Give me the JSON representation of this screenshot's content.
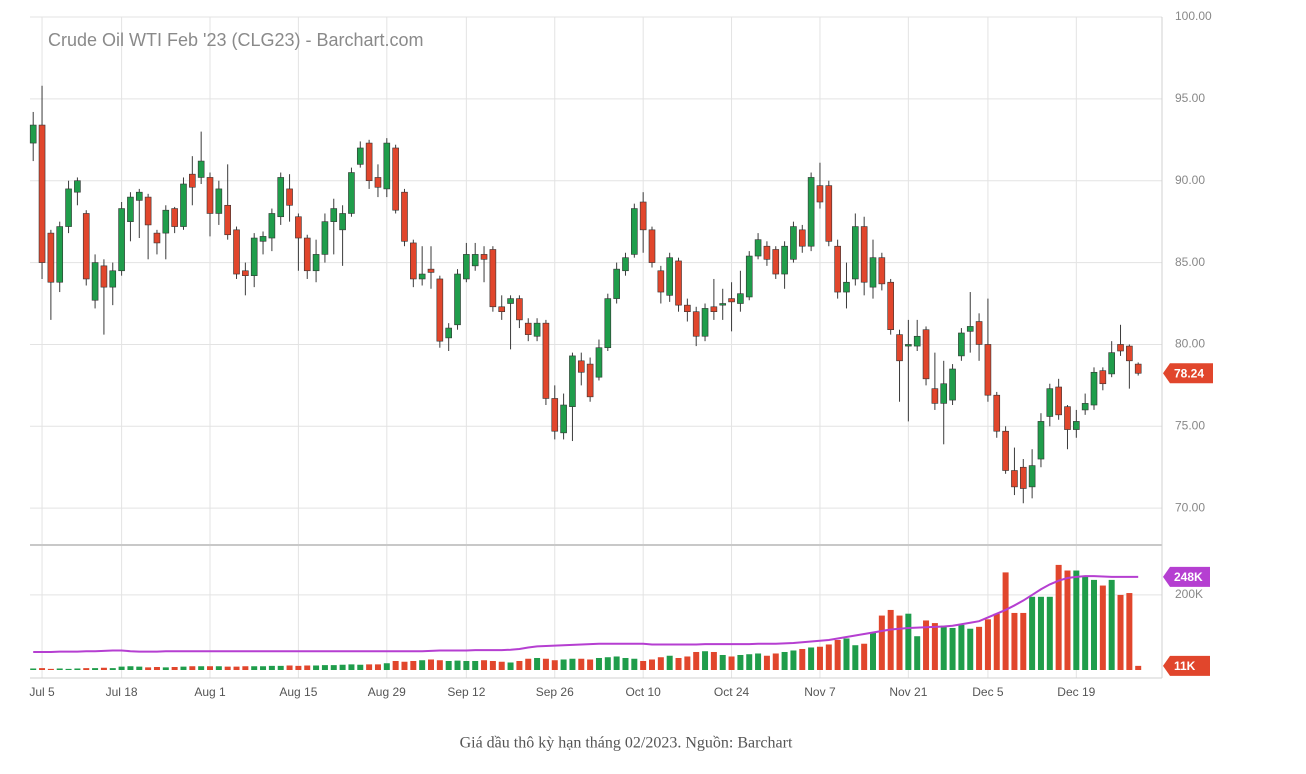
{
  "chart_data": [
    {
      "type": "candlestick",
      "title": "Crude Oil WTI Feb '23 (CLG23) - Barchart.com",
      "up_color": "#1f9d4b",
      "down_color": "#e1462c",
      "grid": true,
      "ylim": [
        67.75,
        100
      ],
      "yticks": [
        {
          "value": 70,
          "label": "70.00"
        },
        {
          "value": 75,
          "label": "75.00"
        },
        {
          "value": 80,
          "label": "80.00"
        },
        {
          "value": 85,
          "label": "85.00"
        },
        {
          "value": 90,
          "label": "90.00"
        },
        {
          "value": 95,
          "label": "95.00"
        },
        {
          "value": 100,
          "label": "100.00"
        }
      ],
      "open": [
        92.3,
        93.4,
        86.8,
        83.8,
        87.2,
        89.3,
        88.0,
        82.7,
        84.8,
        83.5,
        84.5,
        87.5,
        88.8,
        89.0,
        86.8,
        86.8,
        88.3,
        87.2,
        90.4,
        90.2,
        90.2,
        88.0,
        88.5,
        87.0,
        84.5,
        84.2,
        86.3,
        86.5,
        87.8,
        89.5,
        87.8,
        86.5,
        84.5,
        85.5,
        87.5,
        87.0,
        88.0,
        91.0,
        92.3,
        90.2,
        89.5,
        92.0,
        89.3,
        86.2,
        84.0,
        84.6,
        84.0,
        80.4,
        81.2,
        84.0,
        84.8,
        85.5,
        85.8,
        82.3,
        82.5,
        82.8,
        81.3,
        80.5,
        81.3,
        76.7,
        74.6,
        76.2,
        79.0,
        78.8,
        78.0,
        79.8,
        82.8,
        84.5,
        85.5,
        88.7,
        87.0,
        84.5,
        83.0,
        85.1,
        82.4,
        82.0,
        80.5,
        82.3,
        82.4,
        82.8,
        82.5,
        82.9,
        85.4,
        86.0,
        85.8,
        84.3,
        85.2,
        87.0,
        86.0,
        89.7,
        89.7,
        86.0,
        83.2,
        84.0,
        87.2,
        83.5,
        85.3,
        83.8,
        80.6,
        79.9,
        79.9,
        80.9,
        77.3,
        76.4,
        76.6,
        79.3,
        80.8,
        81.4,
        80.0,
        76.9,
        74.7,
        72.3,
        72.5,
        71.3,
        73.0,
        75.6,
        77.4,
        76.2,
        74.8,
        76.0,
        76.3,
        78.4,
        78.2,
        80.0,
        79.9,
        78.8
      ],
      "high": [
        94.2,
        95.8,
        87.0,
        87.5,
        90.0,
        90.2,
        88.2,
        85.5,
        85.2,
        85.0,
        88.7,
        89.3,
        89.5,
        89.2,
        87.0,
        88.5,
        88.4,
        90.2,
        91.5,
        93.0,
        90.5,
        90.0,
        91.0,
        87.2,
        85.0,
        86.8,
        86.9,
        88.3,
        90.5,
        90.4,
        88.0,
        86.7,
        86.4,
        88.0,
        88.9,
        88.5,
        90.8,
        92.4,
        92.5,
        91.0,
        92.6,
        92.2,
        89.5,
        86.4,
        86.0,
        86.0,
        84.2,
        81.3,
        84.6,
        86.2,
        86.2,
        86.0,
        86.0,
        83.0,
        83.0,
        83.0,
        81.6,
        81.6,
        81.5,
        77.5,
        77.0,
        79.5,
        79.5,
        79.2,
        80.3,
        83.1,
        85.0,
        85.6,
        88.6,
        89.3,
        87.2,
        84.8,
        85.6,
        85.3,
        82.8,
        82.3,
        82.5,
        84.0,
        83.4,
        83.8,
        84.5,
        85.7,
        86.8,
        86.3,
        86.0,
        86.3,
        87.5,
        87.3,
        90.5,
        91.1,
        90.0,
        86.4,
        85.0,
        88.0,
        87.8,
        86.4,
        85.6,
        84.0,
        80.9,
        81.5,
        81.5,
        81.1,
        79.5,
        79.0,
        78.8,
        81.0,
        83.2,
        81.9,
        82.8,
        77.1,
        75.0,
        73.7,
        73.0,
        73.6,
        75.8,
        77.6,
        77.9,
        76.3,
        76.0,
        77.0,
        78.6,
        78.6,
        80.2,
        81.2,
        80.0,
        78.9
      ],
      "low": [
        91.2,
        84.0,
        81.5,
        83.2,
        86.8,
        88.5,
        83.6,
        82.2,
        80.6,
        82.4,
        84.2,
        86.3,
        86.5,
        85.2,
        85.5,
        85.2,
        86.8,
        87.0,
        88.5,
        89.8,
        86.6,
        87.3,
        86.4,
        84.0,
        83.0,
        83.5,
        85.5,
        85.7,
        87.3,
        87.5,
        84.5,
        84.0,
        83.8,
        85.0,
        85.5,
        84.8,
        87.8,
        90.8,
        89.5,
        89.0,
        89.0,
        88.0,
        86.0,
        83.5,
        83.6,
        83.4,
        79.8,
        79.6,
        80.9,
        83.8,
        84.5,
        83.8,
        82.0,
        81.5,
        79.7,
        81.0,
        80.2,
        80.2,
        76.3,
        74.2,
        74.2,
        74.1,
        77.5,
        76.5,
        77.8,
        79.6,
        82.5,
        84.2,
        85.3,
        85.6,
        84.7,
        82.5,
        82.6,
        82.0,
        81.4,
        79.9,
        80.2,
        81.5,
        81.5,
        80.8,
        82.0,
        82.7,
        85.2,
        84.8,
        84.0,
        83.4,
        85.0,
        85.6,
        85.7,
        88.3,
        86.0,
        82.8,
        82.2,
        83.6,
        83.0,
        82.8,
        83.3,
        80.6,
        76.5,
        75.3,
        79.6,
        77.5,
        76.0,
        73.9,
        76.3,
        79.0,
        79.5,
        79.0,
        76.5,
        74.3,
        72.1,
        70.8,
        70.3,
        70.6,
        72.5,
        75.0,
        75.4,
        73.6,
        74.3,
        75.7,
        76.0,
        77.2,
        78.0,
        79.3,
        77.3,
        78.1
      ],
      "close": [
        93.4,
        85.0,
        83.8,
        87.2,
        89.5,
        90.0,
        84.0,
        85.0,
        83.5,
        84.5,
        88.3,
        89.0,
        89.3,
        87.3,
        86.2,
        88.2,
        87.2,
        89.8,
        89.6,
        91.2,
        88.0,
        89.5,
        86.7,
        84.3,
        84.2,
        86.5,
        86.6,
        88.0,
        90.2,
        88.5,
        86.5,
        84.5,
        85.5,
        87.5,
        88.3,
        88.0,
        90.5,
        92.0,
        90.0,
        89.6,
        92.3,
        88.2,
        86.3,
        84.0,
        84.3,
        84.4,
        80.2,
        81.0,
        84.3,
        85.5,
        85.5,
        85.2,
        82.3,
        82.0,
        82.8,
        81.5,
        80.6,
        81.3,
        76.7,
        74.7,
        76.3,
        79.3,
        78.3,
        76.8,
        79.8,
        82.8,
        84.6,
        85.3,
        88.3,
        87.0,
        85.0,
        83.2,
        85.3,
        82.4,
        82.0,
        80.5,
        82.2,
        82.0,
        82.5,
        82.6,
        83.1,
        85.4,
        86.4,
        85.2,
        84.3,
        86.0,
        87.2,
        86.0,
        90.2,
        88.7,
        86.3,
        83.2,
        83.8,
        87.2,
        83.8,
        85.3,
        83.7,
        80.9,
        79.0,
        80.0,
        80.5,
        77.9,
        76.4,
        77.6,
        78.5,
        80.7,
        81.1,
        80.0,
        76.9,
        74.7,
        72.3,
        71.3,
        71.2,
        72.6,
        75.3,
        77.3,
        75.7,
        74.8,
        75.3,
        76.4,
        78.3,
        77.6,
        79.5,
        79.6,
        79.0,
        78.24
      ]
    },
    {
      "type": "bar",
      "categories": [
        null,
        "Jul 5",
        null,
        null,
        null,
        null,
        null,
        null,
        null,
        null,
        "Jul 18",
        null,
        null,
        null,
        null,
        null,
        null,
        null,
        null,
        null,
        "Aug 1",
        null,
        null,
        null,
        null,
        null,
        null,
        null,
        null,
        null,
        "Aug 15",
        null,
        null,
        null,
        null,
        null,
        null,
        null,
        null,
        null,
        "Aug 29",
        null,
        null,
        null,
        null,
        null,
        null,
        null,
        null,
        "Sep 12",
        null,
        null,
        null,
        null,
        null,
        null,
        null,
        null,
        null,
        "Sep 26",
        null,
        null,
        null,
        null,
        null,
        null,
        null,
        null,
        null,
        "Oct 10",
        null,
        null,
        null,
        null,
        null,
        null,
        null,
        null,
        null,
        "Oct 24",
        null,
        null,
        null,
        null,
        null,
        null,
        null,
        null,
        null,
        "Nov 7",
        null,
        null,
        null,
        null,
        null,
        null,
        null,
        null,
        null,
        "Nov 21",
        null,
        null,
        null,
        null,
        null,
        null,
        null,
        null,
        "Dec 5",
        null,
        null,
        null,
        null,
        null,
        null,
        null,
        null,
        null,
        "Dec 19",
        null,
        null,
        null,
        null,
        null,
        null,
        null
      ],
      "ylim": [
        0,
        333
      ],
      "yticks": [
        {
          "value": 200,
          "label": "200K"
        }
      ],
      "grid": true,
      "values": [
        4,
        5,
        3,
        4,
        3,
        4,
        5,
        5,
        6,
        5,
        9,
        10,
        9,
        7,
        8,
        7,
        8,
        9,
        10,
        10,
        10,
        10,
        9,
        9,
        10,
        10,
        10,
        11,
        11,
        12,
        11,
        12,
        12,
        13,
        13,
        14,
        15,
        14,
        15,
        15,
        18,
        24,
        22,
        24,
        26,
        28,
        26,
        24,
        25,
        24,
        24,
        26,
        24,
        22,
        20,
        24,
        30,
        32,
        30,
        26,
        28,
        30,
        30,
        28,
        32,
        34,
        36,
        32,
        30,
        24,
        28,
        34,
        38,
        32,
        36,
        48,
        50,
        48,
        40,
        36,
        40,
        42,
        44,
        38,
        44,
        48,
        52,
        56,
        60,
        62,
        68,
        80,
        84,
        66,
        70,
        100,
        145,
        160,
        145,
        150,
        90,
        132,
        125,
        118,
        112,
        120,
        110,
        115,
        135,
        150,
        260,
        152,
        152,
        195,
        195,
        195,
        280,
        265,
        265,
        250,
        240,
        225,
        240,
        200,
        205,
        11
      ],
      "value_labels": [
        null,
        null,
        null,
        null,
        null,
        null,
        null,
        null,
        null,
        null,
        null,
        null,
        null,
        null,
        null,
        null,
        null,
        null,
        null,
        null,
        null,
        null,
        null,
        null,
        null,
        null,
        null,
        null,
        null,
        null,
        null,
        null,
        null,
        null,
        null,
        null,
        null,
        null,
        null,
        null,
        null,
        null,
        null,
        null,
        null,
        null,
        null,
        null,
        null,
        null,
        null,
        null,
        null,
        null,
        null,
        null,
        null,
        null,
        null,
        null,
        null,
        null,
        null,
        null,
        null,
        null,
        null,
        null,
        null,
        null,
        null,
        null,
        null,
        null,
        null,
        null,
        null,
        null,
        null,
        null,
        null,
        null,
        null,
        null,
        null,
        null,
        null,
        null,
        null,
        null,
        null,
        null,
        null,
        null,
        null,
        null,
        null,
        null,
        null,
        null,
        null,
        null,
        null,
        null,
        null,
        null,
        null,
        null,
        null,
        null,
        null,
        null,
        null,
        null,
        null,
        null,
        null,
        null,
        null,
        null,
        null,
        null,
        null,
        null,
        null,
        "11K"
      ],
      "ma": {
        "color": "#b53fd1",
        "values": [
          48,
          48,
          48,
          49,
          49,
          49,
          50,
          50,
          51,
          52,
          52,
          50,
          49,
          49,
          49,
          50,
          50,
          50,
          50,
          50,
          50,
          50,
          50,
          50,
          50,
          50,
          50,
          50,
          50,
          50,
          50,
          50,
          50,
          50,
          50,
          50,
          50,
          50,
          50,
          50,
          50,
          50,
          50,
          50,
          50,
          51,
          52,
          52,
          52,
          52,
          53,
          53,
          53,
          53,
          54,
          56,
          60,
          63,
          64,
          65,
          66,
          67,
          68,
          69,
          70,
          70,
          70,
          70,
          70,
          70,
          68,
          68,
          68,
          68,
          68,
          68,
          69,
          69,
          69,
          69,
          69,
          69,
          70,
          70,
          70,
          71,
          72,
          74,
          76,
          78,
          80,
          84,
          88,
          92,
          96,
          100,
          104,
          108,
          110,
          112,
          113,
          114,
          115,
          116,
          118,
          122,
          126,
          130,
          140,
          150,
          160,
          172,
          185,
          200,
          215,
          228,
          238,
          245,
          248,
          250,
          250,
          249,
          248,
          248,
          248,
          248
        ],
        "value_labels": [
          null,
          null,
          null,
          null,
          null,
          null,
          null,
          null,
          null,
          null,
          null,
          null,
          null,
          null,
          null,
          null,
          null,
          null,
          null,
          null,
          null,
          null,
          null,
          null,
          null,
          null,
          null,
          null,
          null,
          null,
          null,
          null,
          null,
          null,
          null,
          null,
          null,
          null,
          null,
          null,
          null,
          null,
          null,
          null,
          null,
          null,
          null,
          null,
          null,
          null,
          null,
          null,
          null,
          null,
          null,
          null,
          null,
          null,
          null,
          null,
          null,
          null,
          null,
          null,
          null,
          null,
          null,
          null,
          null,
          null,
          null,
          null,
          null,
          null,
          null,
          null,
          null,
          null,
          null,
          null,
          null,
          null,
          null,
          null,
          null,
          null,
          null,
          null,
          null,
          null,
          null,
          null,
          null,
          null,
          null,
          null,
          null,
          null,
          null,
          null,
          null,
          null,
          null,
          null,
          null,
          null,
          null,
          null,
          null,
          null,
          null,
          null,
          null,
          null,
          null,
          null,
          null,
          null,
          null,
          null,
          null,
          null,
          null,
          null,
          null,
          "248K"
        ]
      }
    }
  ],
  "caption": "Giá dầu thô kỳ hạn tháng 02/2023. Nguồn: Barchart"
}
